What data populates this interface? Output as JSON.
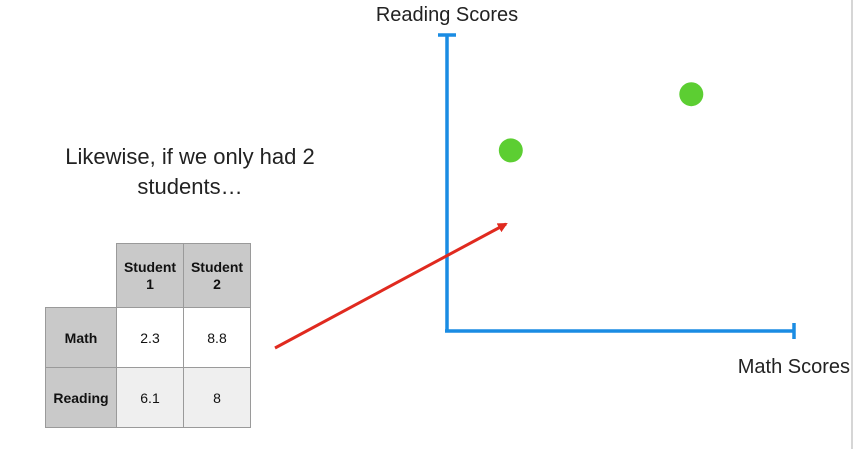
{
  "caption": "Likewise, if we only had 2 students…",
  "table": {
    "headers": [
      {
        "line1": "Student",
        "line2": "1"
      },
      {
        "line1": "Student",
        "line2": "2"
      }
    ],
    "rows": [
      {
        "label": "Math",
        "values": [
          "2.3",
          "8.8"
        ]
      },
      {
        "label": "Reading",
        "values": [
          "6.1",
          "8"
        ]
      }
    ]
  },
  "chart_data": {
    "type": "scatter",
    "xlabel": "Math Scores",
    "ylabel": "Reading Scores",
    "points": [
      {
        "x": 2.3,
        "y": 6.1
      },
      {
        "x": 8.8,
        "y": 8
      }
    ],
    "xlim": [
      0,
      12.5
    ],
    "ylim": [
      0,
      10
    ],
    "grid": false
  },
  "colors": {
    "axis": "#1a8ce3",
    "point": "#5cce32",
    "arrow": "#e02a1f",
    "header_fill": "#c9c9c9",
    "alt_row_fill": "#efefef"
  }
}
